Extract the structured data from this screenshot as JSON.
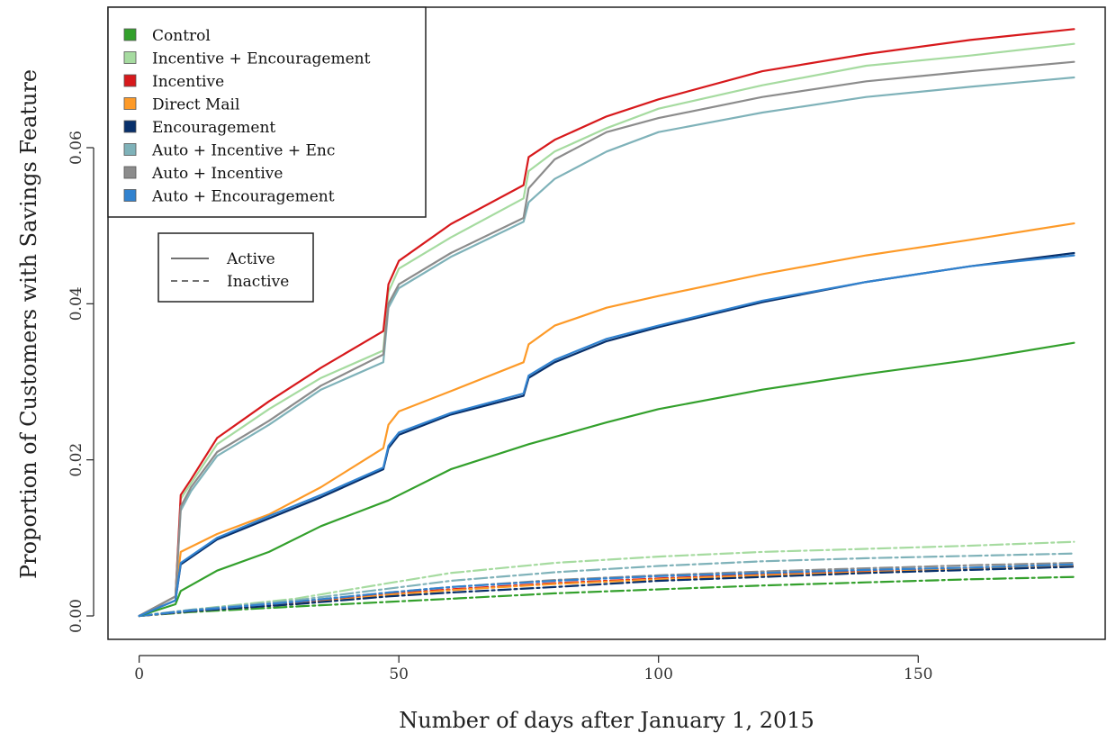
{
  "chart_data": {
    "type": "line",
    "xlabel": "Number of days after January 1, 2015",
    "ylabel": "Proportion of Customers with Savings Feature",
    "xlim": [
      -6,
      186
    ],
    "ylim": [
      -0.003,
      0.078
    ],
    "xticks": [
      0,
      50,
      100,
      150
    ],
    "xtick_labels": [
      "0",
      "50",
      "100",
      "150"
    ],
    "yticks": [
      0,
      0.02,
      0.04,
      0.06
    ],
    "ytick_labels": [
      "0.00",
      "0.02",
      "0.04",
      "0.06"
    ],
    "grid": false,
    "legend_position": "top-left",
    "legend": [
      {
        "label": "Control",
        "color": "#33a02c"
      },
      {
        "label": "Incentive + Encouragement",
        "color": "#a6dba0"
      },
      {
        "label": "Incentive",
        "color": "#d7191c"
      },
      {
        "label": "Direct Mail",
        "color": "#fd9a28"
      },
      {
        "label": "Encouragement",
        "color": "#08306b"
      },
      {
        "label": "Auto + Incentive + Enc",
        "color": "#7fb2b9"
      },
      {
        "label": "Auto + Incentive",
        "color": "#8c8c8c"
      },
      {
        "label": "Auto + Encouragement",
        "color": "#3182cf"
      }
    ],
    "linestyle_legend": [
      {
        "label": "Active",
        "dash": "solid"
      },
      {
        "label": "Inactive",
        "dash": "dashed"
      }
    ],
    "series": [
      {
        "name": "Control",
        "color": "#33a02c",
        "style": "solid",
        "x": [
          0,
          7,
          8,
          15,
          25,
          35,
          48,
          60,
          75,
          90,
          100,
          120,
          140,
          160,
          180
        ],
        "y": [
          0,
          0.0015,
          0.0032,
          0.0058,
          0.0082,
          0.0115,
          0.0148,
          0.0188,
          0.022,
          0.0248,
          0.0265,
          0.029,
          0.031,
          0.0328,
          0.035
        ]
      },
      {
        "name": "Incentive + Encouragement",
        "color": "#a6dba0",
        "style": "solid",
        "x": [
          0,
          7,
          8,
          10,
          15,
          25,
          35,
          47,
          48,
          50,
          60,
          74,
          75,
          80,
          90,
          100,
          120,
          140,
          160,
          180
        ],
        "y": [
          0,
          0.0025,
          0.015,
          0.017,
          0.022,
          0.0265,
          0.0305,
          0.034,
          0.0415,
          0.0445,
          0.0485,
          0.0535,
          0.057,
          0.0595,
          0.0625,
          0.065,
          0.068,
          0.0705,
          0.0718,
          0.0733
        ]
      },
      {
        "name": "Incentive",
        "color": "#d7191c",
        "style": "solid",
        "x": [
          0,
          7,
          8,
          10,
          15,
          25,
          35,
          47,
          48,
          50,
          60,
          74,
          75,
          80,
          90,
          100,
          120,
          140,
          160,
          180
        ],
        "y": [
          0,
          0.0025,
          0.0155,
          0.0175,
          0.0228,
          0.0275,
          0.0318,
          0.0365,
          0.0425,
          0.0455,
          0.0502,
          0.0552,
          0.0588,
          0.061,
          0.064,
          0.0662,
          0.0698,
          0.072,
          0.0738,
          0.0752
        ]
      },
      {
        "name": "Direct Mail",
        "color": "#fd9a28",
        "style": "solid",
        "x": [
          0,
          7,
          8,
          15,
          25,
          35,
          47,
          48,
          50,
          60,
          74,
          75,
          80,
          90,
          100,
          120,
          140,
          160,
          180
        ],
        "y": [
          0,
          0.0025,
          0.0082,
          0.0105,
          0.013,
          0.0165,
          0.0215,
          0.0245,
          0.0262,
          0.0288,
          0.0325,
          0.0348,
          0.0372,
          0.0395,
          0.041,
          0.0438,
          0.0462,
          0.0482,
          0.0503
        ]
      },
      {
        "name": "Encouragement",
        "color": "#08306b",
        "style": "solid",
        "x": [
          0,
          7,
          8,
          15,
          25,
          35,
          47,
          48,
          50,
          60,
          74,
          75,
          80,
          90,
          100,
          120,
          140,
          160,
          180
        ],
        "y": [
          0,
          0.002,
          0.0066,
          0.0098,
          0.0125,
          0.0152,
          0.0188,
          0.0215,
          0.0232,
          0.0258,
          0.0282,
          0.0305,
          0.0325,
          0.0352,
          0.037,
          0.0402,
          0.0428,
          0.0448,
          0.0465
        ]
      },
      {
        "name": "Auto + Incentive + Enc",
        "color": "#7fb2b9",
        "style": "solid",
        "x": [
          0,
          7,
          8,
          10,
          15,
          25,
          35,
          47,
          48,
          50,
          60,
          74,
          75,
          80,
          90,
          100,
          120,
          140,
          160,
          180
        ],
        "y": [
          0,
          0.0025,
          0.0135,
          0.016,
          0.0205,
          0.0245,
          0.029,
          0.0325,
          0.0395,
          0.042,
          0.046,
          0.0505,
          0.053,
          0.056,
          0.0595,
          0.062,
          0.0645,
          0.0665,
          0.0678,
          0.069
        ]
      },
      {
        "name": "Auto + Incentive",
        "color": "#8c8c8c",
        "style": "solid",
        "x": [
          0,
          7,
          8,
          10,
          15,
          25,
          35,
          47,
          48,
          50,
          60,
          74,
          75,
          80,
          90,
          100,
          120,
          140,
          160,
          180
        ],
        "y": [
          0,
          0.0025,
          0.014,
          0.0165,
          0.021,
          0.025,
          0.0295,
          0.0335,
          0.04,
          0.0425,
          0.0465,
          0.051,
          0.0548,
          0.0585,
          0.062,
          0.0638,
          0.0665,
          0.0685,
          0.0698,
          0.071
        ]
      },
      {
        "name": "Auto + Encouragement",
        "color": "#3182cf",
        "style": "solid",
        "x": [
          0,
          7,
          8,
          15,
          25,
          35,
          47,
          48,
          50,
          60,
          74,
          75,
          80,
          90,
          100,
          120,
          140,
          160,
          180
        ],
        "y": [
          0,
          0.002,
          0.0068,
          0.01,
          0.0128,
          0.0155,
          0.019,
          0.0218,
          0.0235,
          0.026,
          0.0285,
          0.0308,
          0.0328,
          0.0355,
          0.0372,
          0.0404,
          0.0428,
          0.0448,
          0.0462
        ]
      },
      {
        "name": "Control",
        "color": "#33a02c",
        "style": "dashed",
        "x": [
          0,
          10,
          30,
          48,
          60,
          80,
          100,
          120,
          140,
          160,
          180
        ],
        "y": [
          0,
          0.0005,
          0.0012,
          0.0018,
          0.0022,
          0.0029,
          0.0034,
          0.0039,
          0.0043,
          0.0047,
          0.005
        ]
      },
      {
        "name": "Incentive + Encouragement",
        "color": "#a6dba0",
        "style": "dashed",
        "x": [
          0,
          10,
          30,
          48,
          60,
          80,
          100,
          120,
          140,
          160,
          180
        ],
        "y": [
          0,
          0.0008,
          0.0022,
          0.0042,
          0.0055,
          0.0068,
          0.0076,
          0.0082,
          0.0086,
          0.009,
          0.0095
        ]
      },
      {
        "name": "Incentive",
        "color": "#d7191c",
        "style": "dashed",
        "x": [
          0,
          10,
          30,
          48,
          60,
          80,
          100,
          120,
          140,
          160,
          180
        ],
        "y": [
          0,
          0.0006,
          0.0016,
          0.0028,
          0.0034,
          0.0042,
          0.0048,
          0.0053,
          0.0057,
          0.0061,
          0.0065
        ]
      },
      {
        "name": "Direct Mail",
        "color": "#fd9a28",
        "style": "dashed",
        "x": [
          0,
          10,
          30,
          48,
          60,
          80,
          100,
          120,
          140,
          160,
          180
        ],
        "y": [
          0,
          0.0006,
          0.0015,
          0.0027,
          0.0033,
          0.0041,
          0.0047,
          0.0052,
          0.0056,
          0.006,
          0.0064
        ]
      },
      {
        "name": "Encouragement",
        "color": "#08306b",
        "style": "dashed",
        "x": [
          0,
          10,
          30,
          48,
          60,
          80,
          100,
          120,
          140,
          160,
          180
        ],
        "y": [
          0,
          0.0006,
          0.0015,
          0.0025,
          0.003,
          0.0037,
          0.0045,
          0.005,
          0.0055,
          0.0059,
          0.0063
        ]
      },
      {
        "name": "Auto + Incentive + Enc",
        "color": "#7fb2b9",
        "style": "dashed",
        "x": [
          0,
          10,
          30,
          48,
          60,
          80,
          100,
          120,
          140,
          160,
          180
        ],
        "y": [
          0,
          0.0008,
          0.002,
          0.0035,
          0.0045,
          0.0056,
          0.0064,
          0.007,
          0.0074,
          0.0077,
          0.008
        ]
      },
      {
        "name": "Auto + Incentive",
        "color": "#8c8c8c",
        "style": "dashed",
        "x": [
          0,
          10,
          30,
          48,
          60,
          80,
          100,
          120,
          140,
          160,
          180
        ],
        "y": [
          0,
          0.0007,
          0.0018,
          0.003,
          0.0037,
          0.0046,
          0.0052,
          0.0057,
          0.0061,
          0.0065,
          0.0068
        ]
      },
      {
        "name": "Auto + Encouragement",
        "color": "#3182cf",
        "style": "dashed",
        "x": [
          0,
          10,
          30,
          48,
          60,
          80,
          100,
          120,
          140,
          160,
          180
        ],
        "y": [
          0,
          0.0007,
          0.0018,
          0.003,
          0.0037,
          0.0045,
          0.0051,
          0.0055,
          0.0059,
          0.0062,
          0.0066
        ]
      }
    ]
  }
}
